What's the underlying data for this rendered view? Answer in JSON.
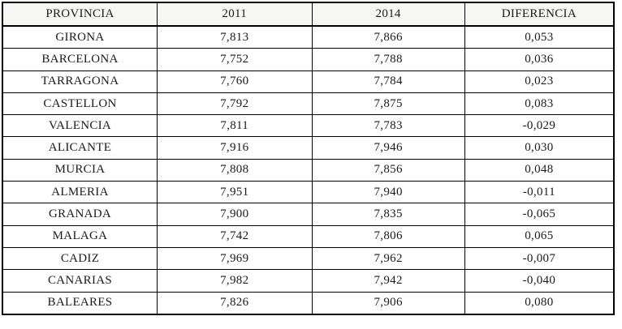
{
  "table": {
    "columns": [
      "PROVINCIA",
      "2011",
      "2014",
      "DIFERENCIA"
    ],
    "rows": [
      [
        "GIRONA",
        "7,813",
        "7,866",
        "0,053"
      ],
      [
        "BARCELONA",
        "7,752",
        "7,788",
        "0,036"
      ],
      [
        "TARRAGONA",
        "7,760",
        "7,784",
        "0,023"
      ],
      [
        "CASTELLON",
        "7,792",
        "7,875",
        "0,083"
      ],
      [
        "VALENCIA",
        "7,811",
        "7,783",
        "-0,029"
      ],
      [
        "ALICANTE",
        "7,916",
        "7,946",
        "0,030"
      ],
      [
        "MURCIA",
        "7,808",
        "7,856",
        "0,048"
      ],
      [
        "ALMERIA",
        "7,951",
        "7,940",
        "-0,011"
      ],
      [
        "GRANADA",
        "7,900",
        "7,835",
        "-0,065"
      ],
      [
        "MALAGA",
        "7,742",
        "7,806",
        "0,065"
      ],
      [
        "CADIZ",
        "7,969",
        "7,962",
        "-0,007"
      ],
      [
        "CANARIAS",
        "7,982",
        "7,942",
        "-0,040"
      ],
      [
        "BALEARES",
        "7,826",
        "7,906",
        "0,080"
      ]
    ]
  },
  "colors": {
    "border": "#000000",
    "header_bg": "#f6f6f5",
    "text": "#1a1a1a"
  }
}
